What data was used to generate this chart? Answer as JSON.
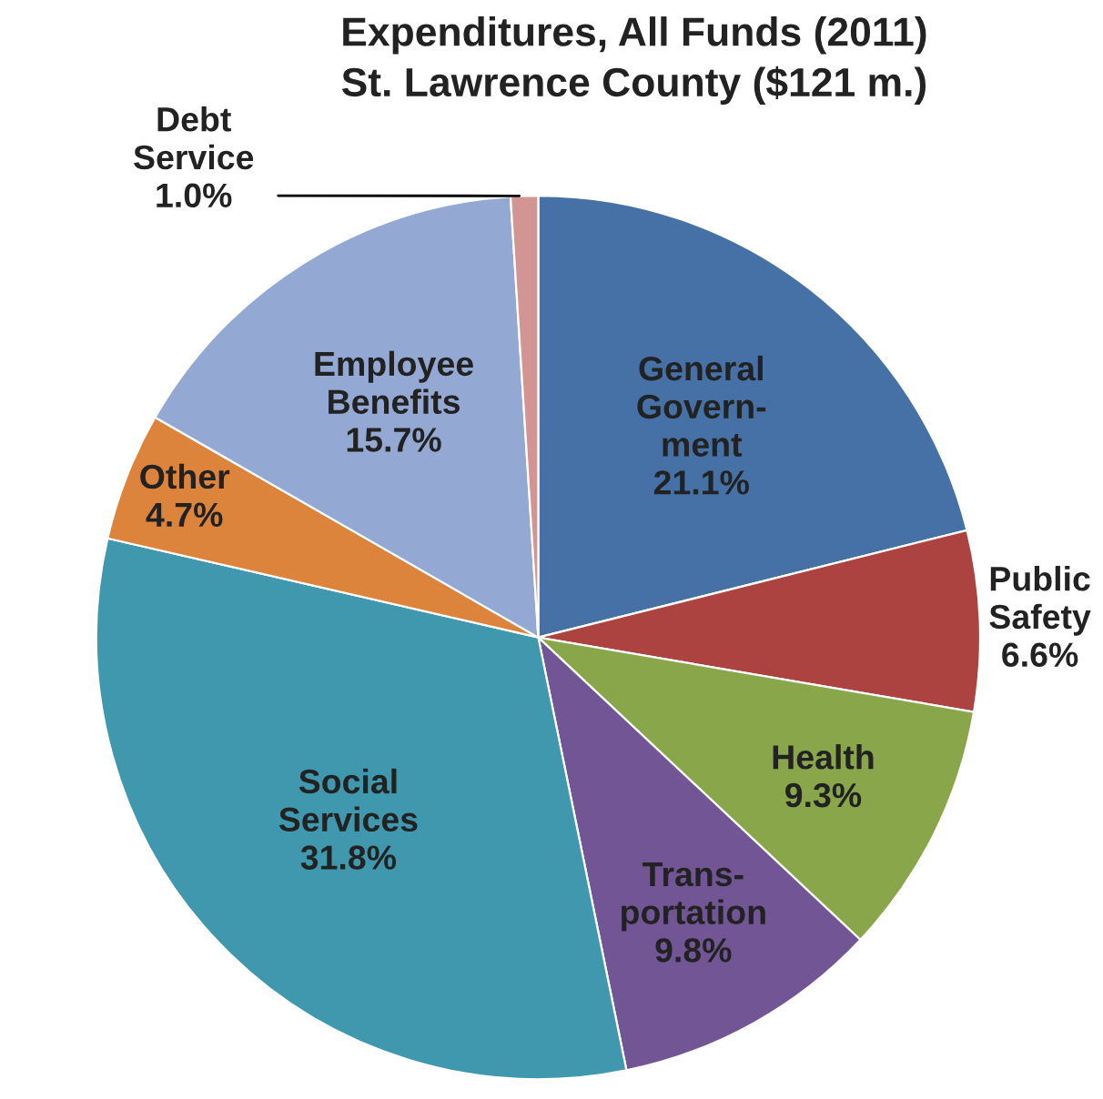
{
  "chart_data": {
    "type": "pie",
    "title": "Expenditures, All Funds (2011)\nSt. Lawrence County ($121 m.)",
    "categories": [
      "General\nGovern-\nment",
      "Public\nSafety",
      "Health",
      "Trans-\nportation",
      "Social\nServices",
      "Other",
      "Employee\nBenefits",
      "Debt\nService"
    ],
    "values": [
      21.1,
      6.6,
      9.3,
      9.8,
      31.8,
      4.7,
      15.7,
      1.0
    ],
    "value_labels": [
      "21.1%",
      "6.6%",
      "9.3%",
      "9.8%",
      "31.8%",
      "4.7%",
      "15.7%",
      "1.0%"
    ],
    "colors": [
      "#4571a7",
      "#ac4340",
      "#89a64b",
      "#715594",
      "#3f98ae",
      "#dd843c",
      "#93a8d2",
      "#d39594"
    ]
  }
}
